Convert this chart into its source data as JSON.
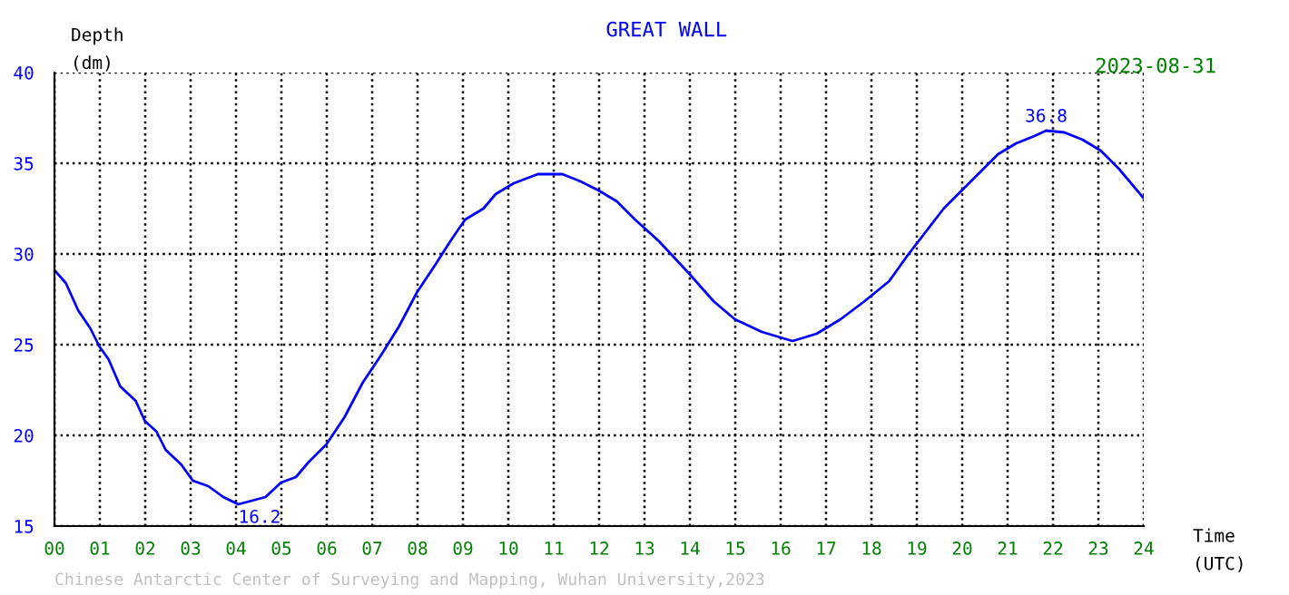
{
  "chart_data": {
    "type": "line",
    "title": "GREAT WALL",
    "xlabel": "Time\n(UTC)",
    "ylabel": "Depth\n(dm)",
    "x": [
      0,
      0.25,
      0.52,
      0.79,
      0.99,
      1.19,
      1.45,
      1.79,
      1.99,
      2.25,
      2.45,
      2.79,
      3.05,
      3.39,
      3.72,
      4.05,
      4.65,
      4.99,
      5.32,
      5.59,
      5.99,
      6.39,
      6.79,
      7.19,
      7.59,
      7.99,
      8.39,
      8.72,
      9.05,
      9.45,
      9.72,
      10.12,
      10.65,
      11.19,
      11.59,
      11.99,
      12.39,
      12.79,
      13.32,
      13.99,
      14.52,
      14.99,
      15.59,
      16.26,
      16.79,
      17.32,
      17.85,
      18.39,
      18.79,
      19.19,
      19.59,
      19.99,
      20.39,
      20.79,
      21.19,
      21.59,
      21.85,
      22.25,
      22.65,
      23.05,
      23.45,
      23.99
    ],
    "series": [
      {
        "color": "#0000ff",
        "values": [
          29.1,
          28.4,
          26.9,
          25.9,
          24.9,
          24.2,
          22.7,
          21.9,
          20.8,
          20.2,
          19.2,
          18.4,
          17.5,
          17.2,
          16.6,
          16.2,
          16.6,
          17.4,
          17.7,
          18.5,
          19.5,
          21.0,
          22.9,
          24.4,
          26.0,
          27.9,
          29.4,
          30.7,
          31.9,
          32.5,
          33.3,
          33.9,
          34.4,
          34.4,
          34.0,
          33.5,
          32.9,
          31.9,
          30.7,
          28.9,
          27.4,
          26.4,
          25.7,
          25.2,
          25.6,
          26.4,
          27.4,
          28.5,
          29.9,
          31.2,
          32.5,
          33.5,
          34.5,
          35.5,
          36.1,
          36.5,
          36.8,
          36.7,
          36.3,
          35.7,
          34.7,
          33.1
        ]
      }
    ],
    "xlim": [
      0,
      24
    ],
    "ylim": [
      15,
      40
    ],
    "xticks": [
      {
        "value": 0,
        "label": "00"
      },
      {
        "value": 1,
        "label": "01"
      },
      {
        "value": 2,
        "label": "02"
      },
      {
        "value": 3,
        "label": "03"
      },
      {
        "value": 4,
        "label": "04"
      },
      {
        "value": 5,
        "label": "05"
      },
      {
        "value": 6,
        "label": "06"
      },
      {
        "value": 7,
        "label": "07"
      },
      {
        "value": 8,
        "label": "08"
      },
      {
        "value": 9,
        "label": "09"
      },
      10,
      11,
      12,
      13,
      14,
      15,
      16,
      17,
      18,
      19,
      20,
      21,
      22,
      23,
      24
    ],
    "yticks": [
      15,
      20,
      25,
      30,
      35,
      40
    ],
    "grid": true,
    "line_style": "solid",
    "marker": "none",
    "annotations": [
      {
        "text": "16.2",
        "x": 4.05,
        "y": 16.2
      },
      {
        "text": "36.8",
        "x": 21.85,
        "y": 36.8
      },
      "2023-08-31",
      "Chinese Antarctic Center of Surveying and Mapping, Wuhan University,2023"
    ]
  }
}
